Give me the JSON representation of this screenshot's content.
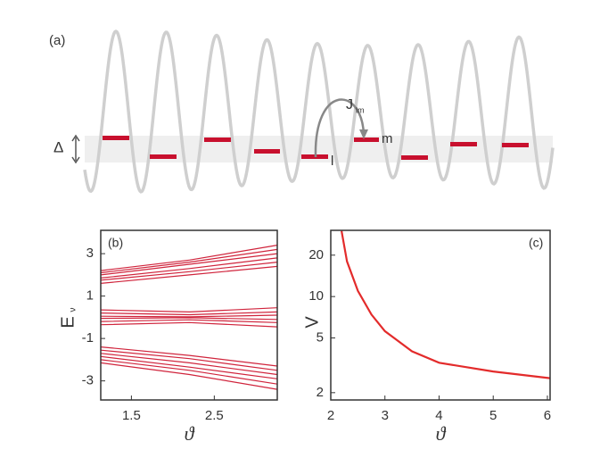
{
  "diagram": {
    "panel_label": "(a)",
    "coupling": "J",
    "coupling_sub": "lm",
    "gap": "Δ",
    "site_l": "l",
    "site_m": "m"
  },
  "chart_data": [
    {
      "type": "line",
      "panel_label": "(b)",
      "y_label": "E",
      "y_label_sub": "ν",
      "x_label": "ϑ",
      "xlim": [
        1.13,
        3.26
      ],
      "ylim": [
        -3.9,
        4.1
      ],
      "xticks": [
        1.5,
        2.5
      ],
      "yticks": [
        3,
        1,
        -1,
        -3
      ],
      "color": "#d0243c",
      "x": [
        1.13,
        2.2,
        3.26
      ],
      "series": [
        {
          "values": [
            2.2,
            2.7,
            3.4
          ]
        },
        {
          "values": [
            2.1,
            2.6,
            3.2
          ]
        },
        {
          "values": [
            2.0,
            2.5,
            3.0
          ]
        },
        {
          "values": [
            1.85,
            2.3,
            2.8
          ]
        },
        {
          "values": [
            1.75,
            2.15,
            2.6
          ]
        },
        {
          "values": [
            1.6,
            2.0,
            2.4
          ]
        },
        {
          "values": [
            0.35,
            0.25,
            0.45
          ]
        },
        {
          "values": [
            0.2,
            0.12,
            0.25
          ]
        },
        {
          "values": [
            0.05,
            0.02,
            0.1
          ]
        },
        {
          "values": [
            -0.05,
            -0.02,
            -0.1
          ]
        },
        {
          "values": [
            -0.2,
            -0.12,
            -0.25
          ]
        },
        {
          "values": [
            -0.35,
            -0.25,
            -0.45
          ]
        },
        {
          "values": [
            -1.4,
            -1.8,
            -2.3
          ]
        },
        {
          "values": [
            -1.55,
            -1.95,
            -2.5
          ]
        },
        {
          "values": [
            -1.7,
            -2.15,
            -2.7
          ]
        },
        {
          "values": [
            -1.85,
            -2.35,
            -2.9
          ]
        },
        {
          "values": [
            -2.0,
            -2.5,
            -3.15
          ]
        },
        {
          "values": [
            -2.15,
            -2.7,
            -3.4
          ]
        }
      ]
    },
    {
      "type": "line",
      "panel_label": "(c)",
      "y_label": "V",
      "x_label": "ϑ",
      "log_scale": "y",
      "xlim": [
        2,
        6.05
      ],
      "ylim": [
        1.77,
        30.3
      ],
      "xticks": [
        2,
        3,
        4,
        5,
        6
      ],
      "yticks": [
        2,
        5,
        10,
        20
      ],
      "color": "#e32b2b",
      "x": [
        2.2,
        2.3,
        2.5,
        2.75,
        3,
        3.5,
        4,
        5,
        6.05
      ],
      "values": [
        30,
        18,
        11,
        7.4,
        5.6,
        4.0,
        3.3,
        2.85,
        2.55
      ]
    }
  ]
}
